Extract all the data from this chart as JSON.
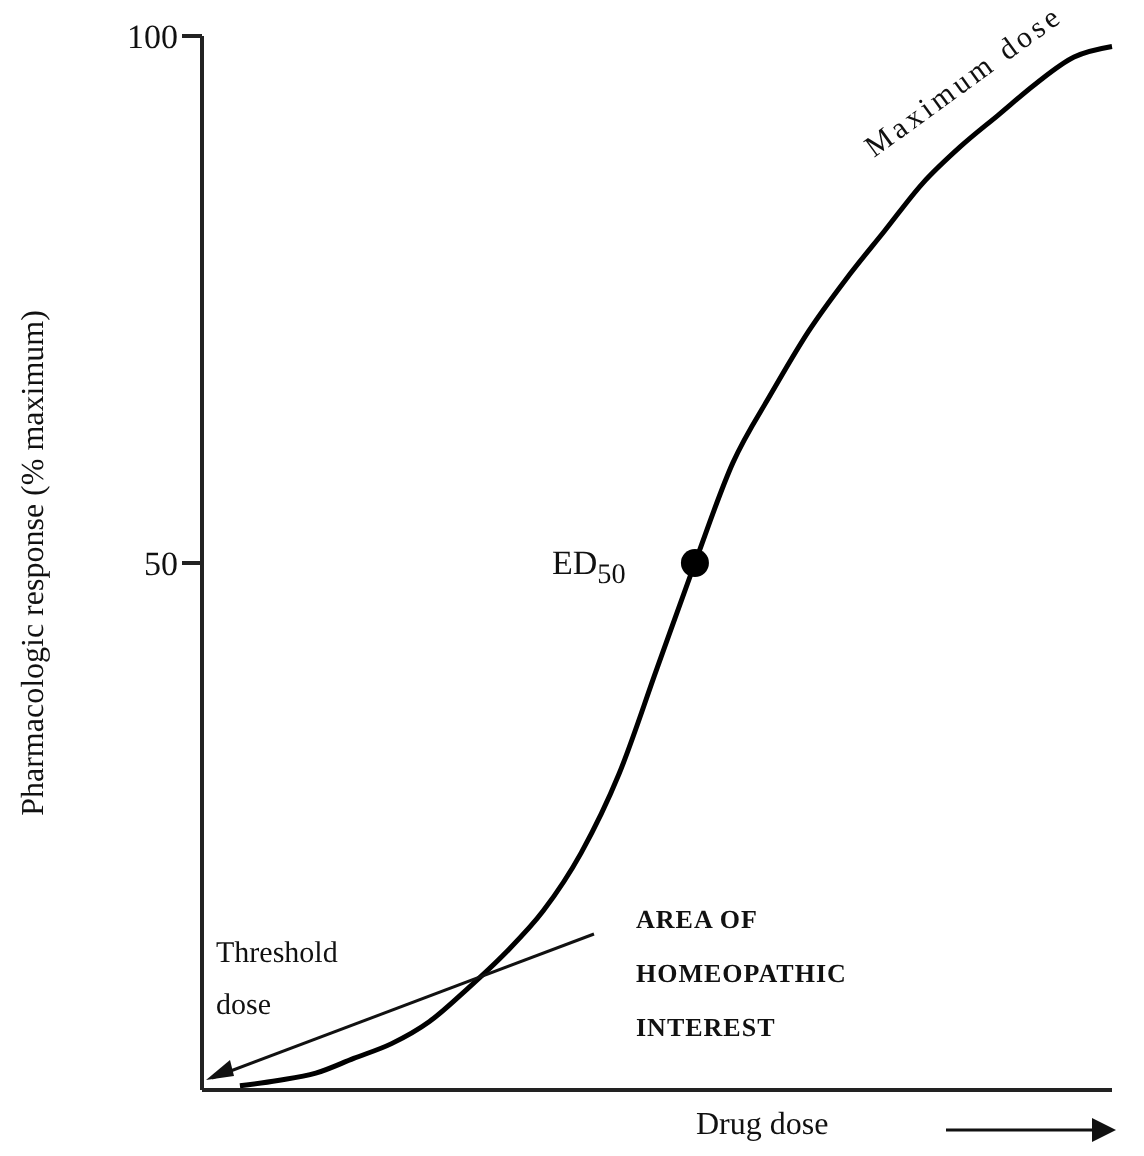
{
  "chart_data": {
    "type": "line",
    "xlabel": "Drug dose",
    "ylabel": "Pharmacologic response (% maximum)",
    "categories": [
      null,
      null,
      null,
      null,
      null,
      null,
      null,
      null,
      null,
      null,
      null,
      null,
      null,
      null,
      null,
      null,
      null,
      null,
      null,
      null,
      null,
      null,
      null,
      null,
      null
    ],
    "series": [
      {
        "type": "line",
        "color": "#000000",
        "marker": "none",
        "values": [
          null,
          0.4,
          0.9,
          1.6,
          3,
          4.4,
          6.5,
          9.6,
          13,
          17,
          22.5,
          30,
          40,
          50,
          59.5,
          66,
          72,
          77,
          81.5,
          86,
          89.5,
          92.5,
          95.5,
          98,
          99
        ]
      },
      {
        "type": "scatter",
        "color": "#000000",
        "marker": "circle",
        "values": [
          null,
          null,
          null,
          null,
          null,
          null,
          null,
          null,
          null,
          null,
          null,
          null,
          null,
          50,
          null,
          null,
          null,
          null,
          null,
          null,
          null,
          null,
          null,
          null,
          null
        ]
      }
    ],
    "ylim": [
      0,
      100
    ],
    "yticks": [
      50,
      100
    ],
    "annotations": [
      "ED$_{50}$",
      "Maximum dose",
      "Threshold dose",
      "AREA OF HOMEOPATHIC INTEREST"
    ]
  }
}
